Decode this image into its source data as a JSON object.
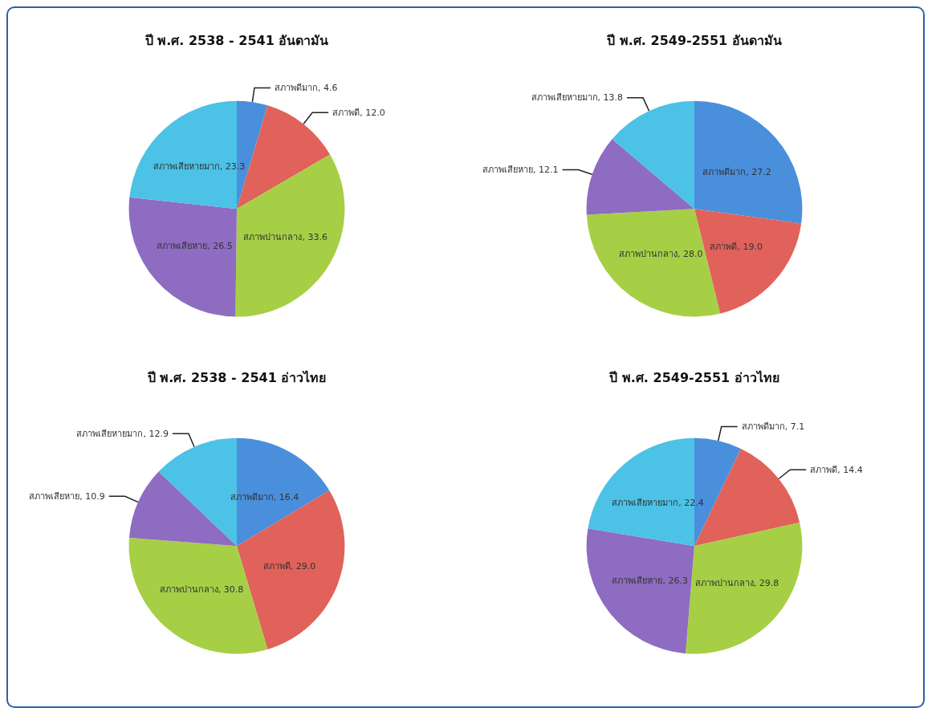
{
  "chart_data": [
    {
      "type": "pie",
      "title": "ปี พ.ศ. 2538 - 2541 อันดามัน",
      "categories": [
        "สภาพดีมาก",
        "สภาพดี",
        "สภาพปานกลาง",
        "สภาพเสียหาย",
        "สภาพเสียหายมาก"
      ],
      "values": [
        4.6,
        12.0,
        33.6,
        26.5,
        23.3
      ],
      "value_labels": [
        "4.6",
        "12.0",
        "33.6",
        "26.5",
        "23.3"
      ],
      "colors": [
        "#4a8fdb",
        "#e0625a",
        "#a6cf45",
        "#8d6cc1",
        "#4cc2e6"
      ]
    },
    {
      "type": "pie",
      "title": "ปี พ.ศ. 2549-2551 อันดามัน",
      "categories": [
        "สภาพดีมาก",
        "สภาพดี",
        "สภาพปานกลาง",
        "สภาพเสียหาย",
        "สภาพเสียหายมาก"
      ],
      "values": [
        27.2,
        19.0,
        28.0,
        12.1,
        13.8
      ],
      "value_labels": [
        "27.2",
        "19.0",
        "28.0",
        "12.1",
        "13.8"
      ],
      "colors": [
        "#4a8fdb",
        "#e0625a",
        "#a6cf45",
        "#8d6cc1",
        "#4cc2e6"
      ]
    },
    {
      "type": "pie",
      "title": "ปี พ.ศ. 2538 - 2541 อ่าวไทย",
      "categories": [
        "สภาพดีมาก",
        "สภาพดี",
        "สภาพปานกลาง",
        "สภาพเสียหาย",
        "สภาพเสียหายมาก"
      ],
      "values": [
        16.4,
        29.0,
        30.8,
        10.9,
        12.9
      ],
      "value_labels": [
        "16.4",
        "29.0",
        "30.8",
        "10.9",
        "12.9"
      ],
      "colors": [
        "#4a8fdb",
        "#e0625a",
        "#a6cf45",
        "#8d6cc1",
        "#4cc2e6"
      ]
    },
    {
      "type": "pie",
      "title": "ปี พ.ศ. 2549-2551 อ่าวไทย",
      "categories": [
        "สภาพดีมาก",
        "สภาพดี",
        "สภาพปานกลาง",
        "สภาพเสียหาย",
        "สภาพเสียหายมาก"
      ],
      "values": [
        7.1,
        14.4,
        29.8,
        26.3,
        22.4
      ],
      "value_labels": [
        "7.1",
        "14.4",
        "29.8",
        "26.3",
        "22.4"
      ],
      "colors": [
        "#4a8fdb",
        "#e0625a",
        "#a6cf45",
        "#8d6cc1",
        "#4cc2e6"
      ]
    }
  ]
}
